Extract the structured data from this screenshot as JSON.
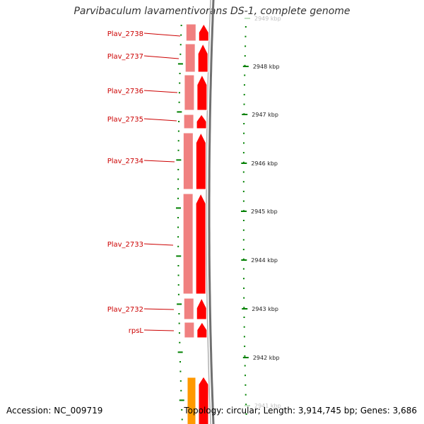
{
  "title": "Parvibaculum lavamentivorans DS-1, complete genome",
  "footer": {
    "accession": "Accession: NC_009719",
    "topology": "Topology: circular; Length: 3,914,745 bp; Genes: 3,686"
  },
  "colors": {
    "cds_forward": "#ff0000",
    "cds_shadow": "#f08080",
    "backbone": "#808080",
    "tick": "#008000",
    "label": "#cc0000",
    "other_feature": "#ff9900"
  },
  "kbp_ticks": [
    {
      "label": "2949 kbp",
      "faded": true
    },
    {
      "label": "2948 kbp",
      "faded": false
    },
    {
      "label": "2947 kbp",
      "faded": false
    },
    {
      "label": "2946 kbp",
      "faded": false
    },
    {
      "label": "2945 kbp",
      "faded": false
    },
    {
      "label": "2944 kbp",
      "faded": false
    },
    {
      "label": "2943 kbp",
      "faded": false
    },
    {
      "label": "2942 kbp",
      "faded": false
    },
    {
      "label": "2941 kbp",
      "faded": true
    }
  ],
  "genes": [
    {
      "name": "Plav_2738"
    },
    {
      "name": "Plav_2737"
    },
    {
      "name": "Plav_2736"
    },
    {
      "name": "Plav_2735"
    },
    {
      "name": "Plav_2734"
    },
    {
      "name": "Plav_2733"
    },
    {
      "name": "Plav_2732"
    },
    {
      "name": "rpsL"
    }
  ]
}
